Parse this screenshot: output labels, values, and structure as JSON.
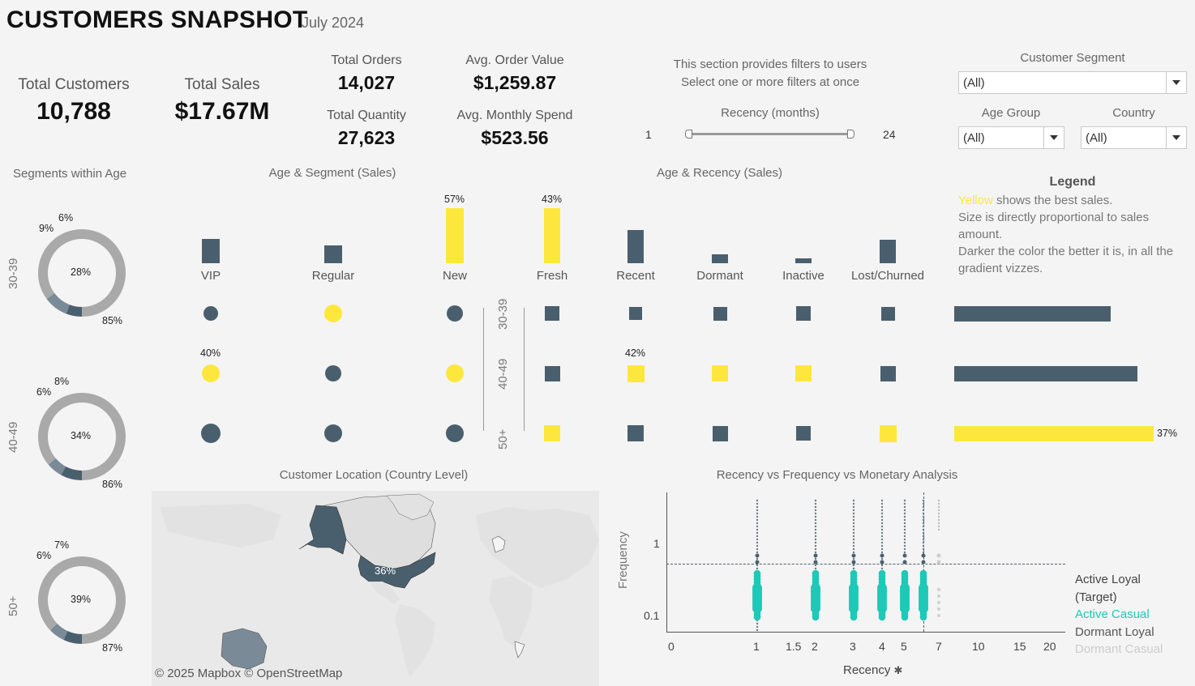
{
  "header": {
    "title": "CUSTOMERS SNAPSHOT",
    "period": "July 2024"
  },
  "kpis": {
    "total_customers": {
      "label": "Total Customers",
      "value": "10,788"
    },
    "total_sales": {
      "label": "Total Sales",
      "value": "$17.67M"
    },
    "total_orders": {
      "label": "Total Orders",
      "value": "14,027"
    },
    "total_quantity": {
      "label": "Total Quantity",
      "value": "27,623"
    },
    "avg_order_value": {
      "label": "Avg. Order Value",
      "value": "$1,259.87"
    },
    "avg_monthly_spend": {
      "label": "Avg. Monthly Spend",
      "value": "$523.56"
    }
  },
  "filters": {
    "note_line1": "This section provides filters to users",
    "note_line2": "Select one or more filters at once",
    "recency": {
      "label": "Recency (months)",
      "min": "1",
      "max": "24"
    },
    "customer_segment": {
      "label": "Customer Segment",
      "value": "(All)"
    },
    "age_group": {
      "label": "Age Group",
      "value": "(All)"
    },
    "country": {
      "label": "Country",
      "value": "(All)"
    }
  },
  "colors": {
    "dark": "#4a5f6e",
    "yellow": "#fde73d",
    "grey": "#a9a9a9",
    "mid": "#7a8a96",
    "teal": "#1dc9b7",
    "bg": "#f4f4f4"
  },
  "segments_within_age": {
    "title": "Segments within Age",
    "donuts": [
      {
        "age": "30-39",
        "center": "28%",
        "big": "85%",
        "a": "9%",
        "b": "6%",
        "big_frac": 0.85,
        "a_frac": 0.09,
        "b_frac": 0.06
      },
      {
        "age": "40-49",
        "center": "34%",
        "big": "86%",
        "a": "6%",
        "b": "8%",
        "big_frac": 0.86,
        "a_frac": 0.06,
        "b_frac": 0.08
      },
      {
        "age": "50+",
        "center": "39%",
        "big": "87%",
        "a": "6%",
        "b": "7%",
        "big_frac": 0.87,
        "a_frac": 0.06,
        "b_frac": 0.07
      }
    ]
  },
  "age_segment": {
    "title": "Age & Segment (Sales)",
    "categories": [
      "VIP",
      "Regular",
      "New"
    ],
    "top_bars": [
      0.44,
      0.32,
      1.0
    ],
    "top_labels": [
      "",
      "",
      "57%"
    ],
    "top_highlight": [
      false,
      false,
      true
    ],
    "ages": [
      "30-39",
      "40-49",
      "50+"
    ],
    "dots": [
      [
        {
          "r": 9,
          "hl": false
        },
        {
          "r": 11,
          "hl": true
        },
        {
          "r": 10,
          "hl": false
        }
      ],
      [
        {
          "r": 11,
          "hl": true,
          "label": "40%"
        },
        {
          "r": 10,
          "hl": false
        },
        {
          "r": 11,
          "hl": true
        }
      ],
      [
        {
          "r": 12,
          "hl": false
        },
        {
          "r": 11,
          "hl": false
        },
        {
          "r": 11,
          "hl": false
        }
      ]
    ]
  },
  "age_recency": {
    "title": "Age & Recency (Sales)",
    "categories": [
      "Fresh",
      "Recent",
      "Dormant",
      "Inactive",
      "Lost/Churned"
    ],
    "top_bars": [
      1.0,
      0.6,
      0.16,
      0.09,
      0.42
    ],
    "top_labels": [
      "43%",
      "",
      "",
      "",
      ""
    ],
    "top_highlight": [
      true,
      false,
      false,
      false,
      false
    ],
    "squares": [
      [
        {
          "s": 18,
          "hl": false
        },
        {
          "s": 16,
          "hl": false
        },
        {
          "s": 17,
          "hl": false
        },
        {
          "s": 18,
          "hl": false
        },
        {
          "s": 17,
          "hl": false
        }
      ],
      [
        {
          "s": 19,
          "hl": false
        },
        {
          "s": 21,
          "hl": true,
          "label": "42%"
        },
        {
          "s": 20,
          "hl": true
        },
        {
          "s": 20,
          "hl": true
        },
        {
          "s": 19,
          "hl": false
        }
      ],
      [
        {
          "s": 20,
          "hl": true
        },
        {
          "s": 20,
          "hl": false
        },
        {
          "s": 19,
          "hl": false
        },
        {
          "s": 18,
          "hl": false
        },
        {
          "s": 21,
          "hl": true
        }
      ]
    ],
    "age_totals": [
      {
        "value": 0.29,
        "hl": false,
        "label": ""
      },
      {
        "value": 0.34,
        "hl": false,
        "label": ""
      },
      {
        "value": 0.37,
        "hl": true,
        "label": "37%"
      }
    ]
  },
  "legend": {
    "title": "Legend",
    "yellow_word": "Yellow",
    "line1_rest": " shows the best sales.",
    "line2": "Size is directly proportional to sales amount.",
    "line3": "Darker the color the better it is, in all the gradient vizzes."
  },
  "map": {
    "title": "Customer Location (Country Level)",
    "us_label": "36%",
    "attribution": "© 2025 Mapbox © OpenStreetMap"
  },
  "rfm": {
    "title": "Recency vs Frequency vs Monetary Analysis",
    "ylabel": "Frequency",
    "xlabel": "Recency",
    "y_ticks": [
      "1",
      "0.1"
    ],
    "x_ticks": [
      "0",
      "1",
      "1.5",
      "2",
      "3",
      "4",
      "5",
      "7",
      "10",
      "15",
      "20"
    ],
    "legend": [
      {
        "label": "Active Loyal",
        "color": "#444"
      },
      {
        "label": "(Target)",
        "color": "#444"
      },
      {
        "label": "Active Casual",
        "color": "#1dc9b7"
      },
      {
        "label": "Dormant Loyal",
        "color": "#555"
      },
      {
        "label": "Dormant Casual",
        "color": "#cccccc"
      }
    ]
  }
}
